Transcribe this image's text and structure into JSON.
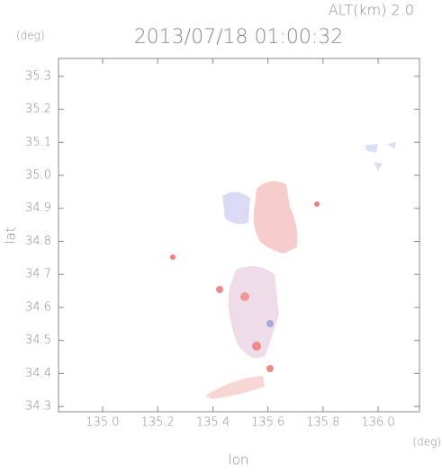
{
  "chart_data": {
    "type": "radar-map",
    "title": "2013/07/18 01:00:32",
    "altitude_label": "ALT(km) 2.0",
    "y_unit": "(deg)",
    "x_unit": "(deg)",
    "xlabel": "lon",
    "ylabel": "lat",
    "xlim": [
      134.84,
      136.15
    ],
    "ylim": [
      34.284,
      35.354
    ],
    "xticks": [
      {
        "value": 135,
        "label": "135.0"
      },
      135.2,
      135.4,
      135.6,
      135.8,
      {
        "value": 136,
        "label": "136.0"
      }
    ],
    "yticks": [
      34.3,
      34.4,
      34.5,
      34.6,
      34.7,
      34.8,
      34.9,
      {
        "value": 35,
        "label": "35.0"
      },
      35.1,
      35.2,
      35.3
    ]
  }
}
